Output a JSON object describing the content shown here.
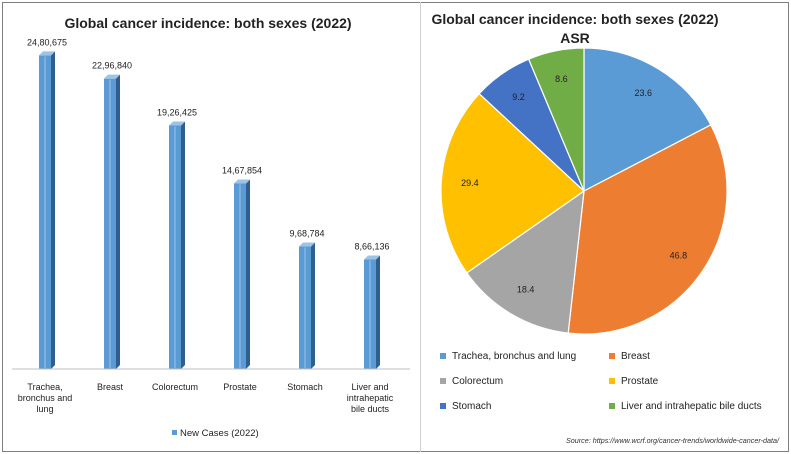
{
  "chart_data": [
    {
      "type": "bar",
      "title": "Global cancer incidence: both sexes (2022)",
      "categories": [
        "Trachea, bronchus and lung",
        "Breast",
        "Colorectum",
        "Prostate",
        "Stomach",
        "Liver and intrahepatic bile ducts"
      ],
      "category_labels": [
        [
          "Trachea,",
          "bronchus and",
          "lung"
        ],
        [
          "Breast"
        ],
        [
          "Colorectum"
        ],
        [
          "Prostate"
        ],
        [
          "Stomach"
        ],
        [
          "Liver and",
          "intrahepatic",
          "bile ducts"
        ]
      ],
      "series": [
        {
          "name": "New Cases (2022)",
          "values": [
            2480675,
            2296840,
            1926425,
            1467854,
            968784,
            866136
          ],
          "data_labels": [
            "24,80,675",
            "22,96,840",
            "19,26,425",
            "14,67,854",
            "9,68,784",
            "8,66,136"
          ]
        }
      ],
      "ylim": [
        0,
        2600000
      ],
      "legend_position": "bottom",
      "grid": false,
      "color": "#5b9bd5"
    },
    {
      "type": "pie",
      "title": "Global cancer incidence: both sexes (2022)",
      "subtitle": "ASR",
      "labels": [
        "Trachea, bronchus and lung",
        "Breast",
        "Colorectum",
        "Prostate",
        "Stomach",
        "Liver and intrahepatic bile ducts"
      ],
      "values": [
        23.6,
        46.8,
        18.4,
        29.4,
        9.2,
        8.6
      ],
      "data_labels": [
        "23.6",
        "46.8",
        "18.4",
        "29.4",
        "9.2",
        "8.6"
      ],
      "colors": [
        "#5b9bd5",
        "#ed7d31",
        "#a5a5a5",
        "#ffc000",
        "#4472c4",
        "#70ad47"
      ],
      "legend_position": "bottom"
    }
  ],
  "source": "Source: https://www.wcrf.org/cancer-trends/worldwide-cancer-data/"
}
